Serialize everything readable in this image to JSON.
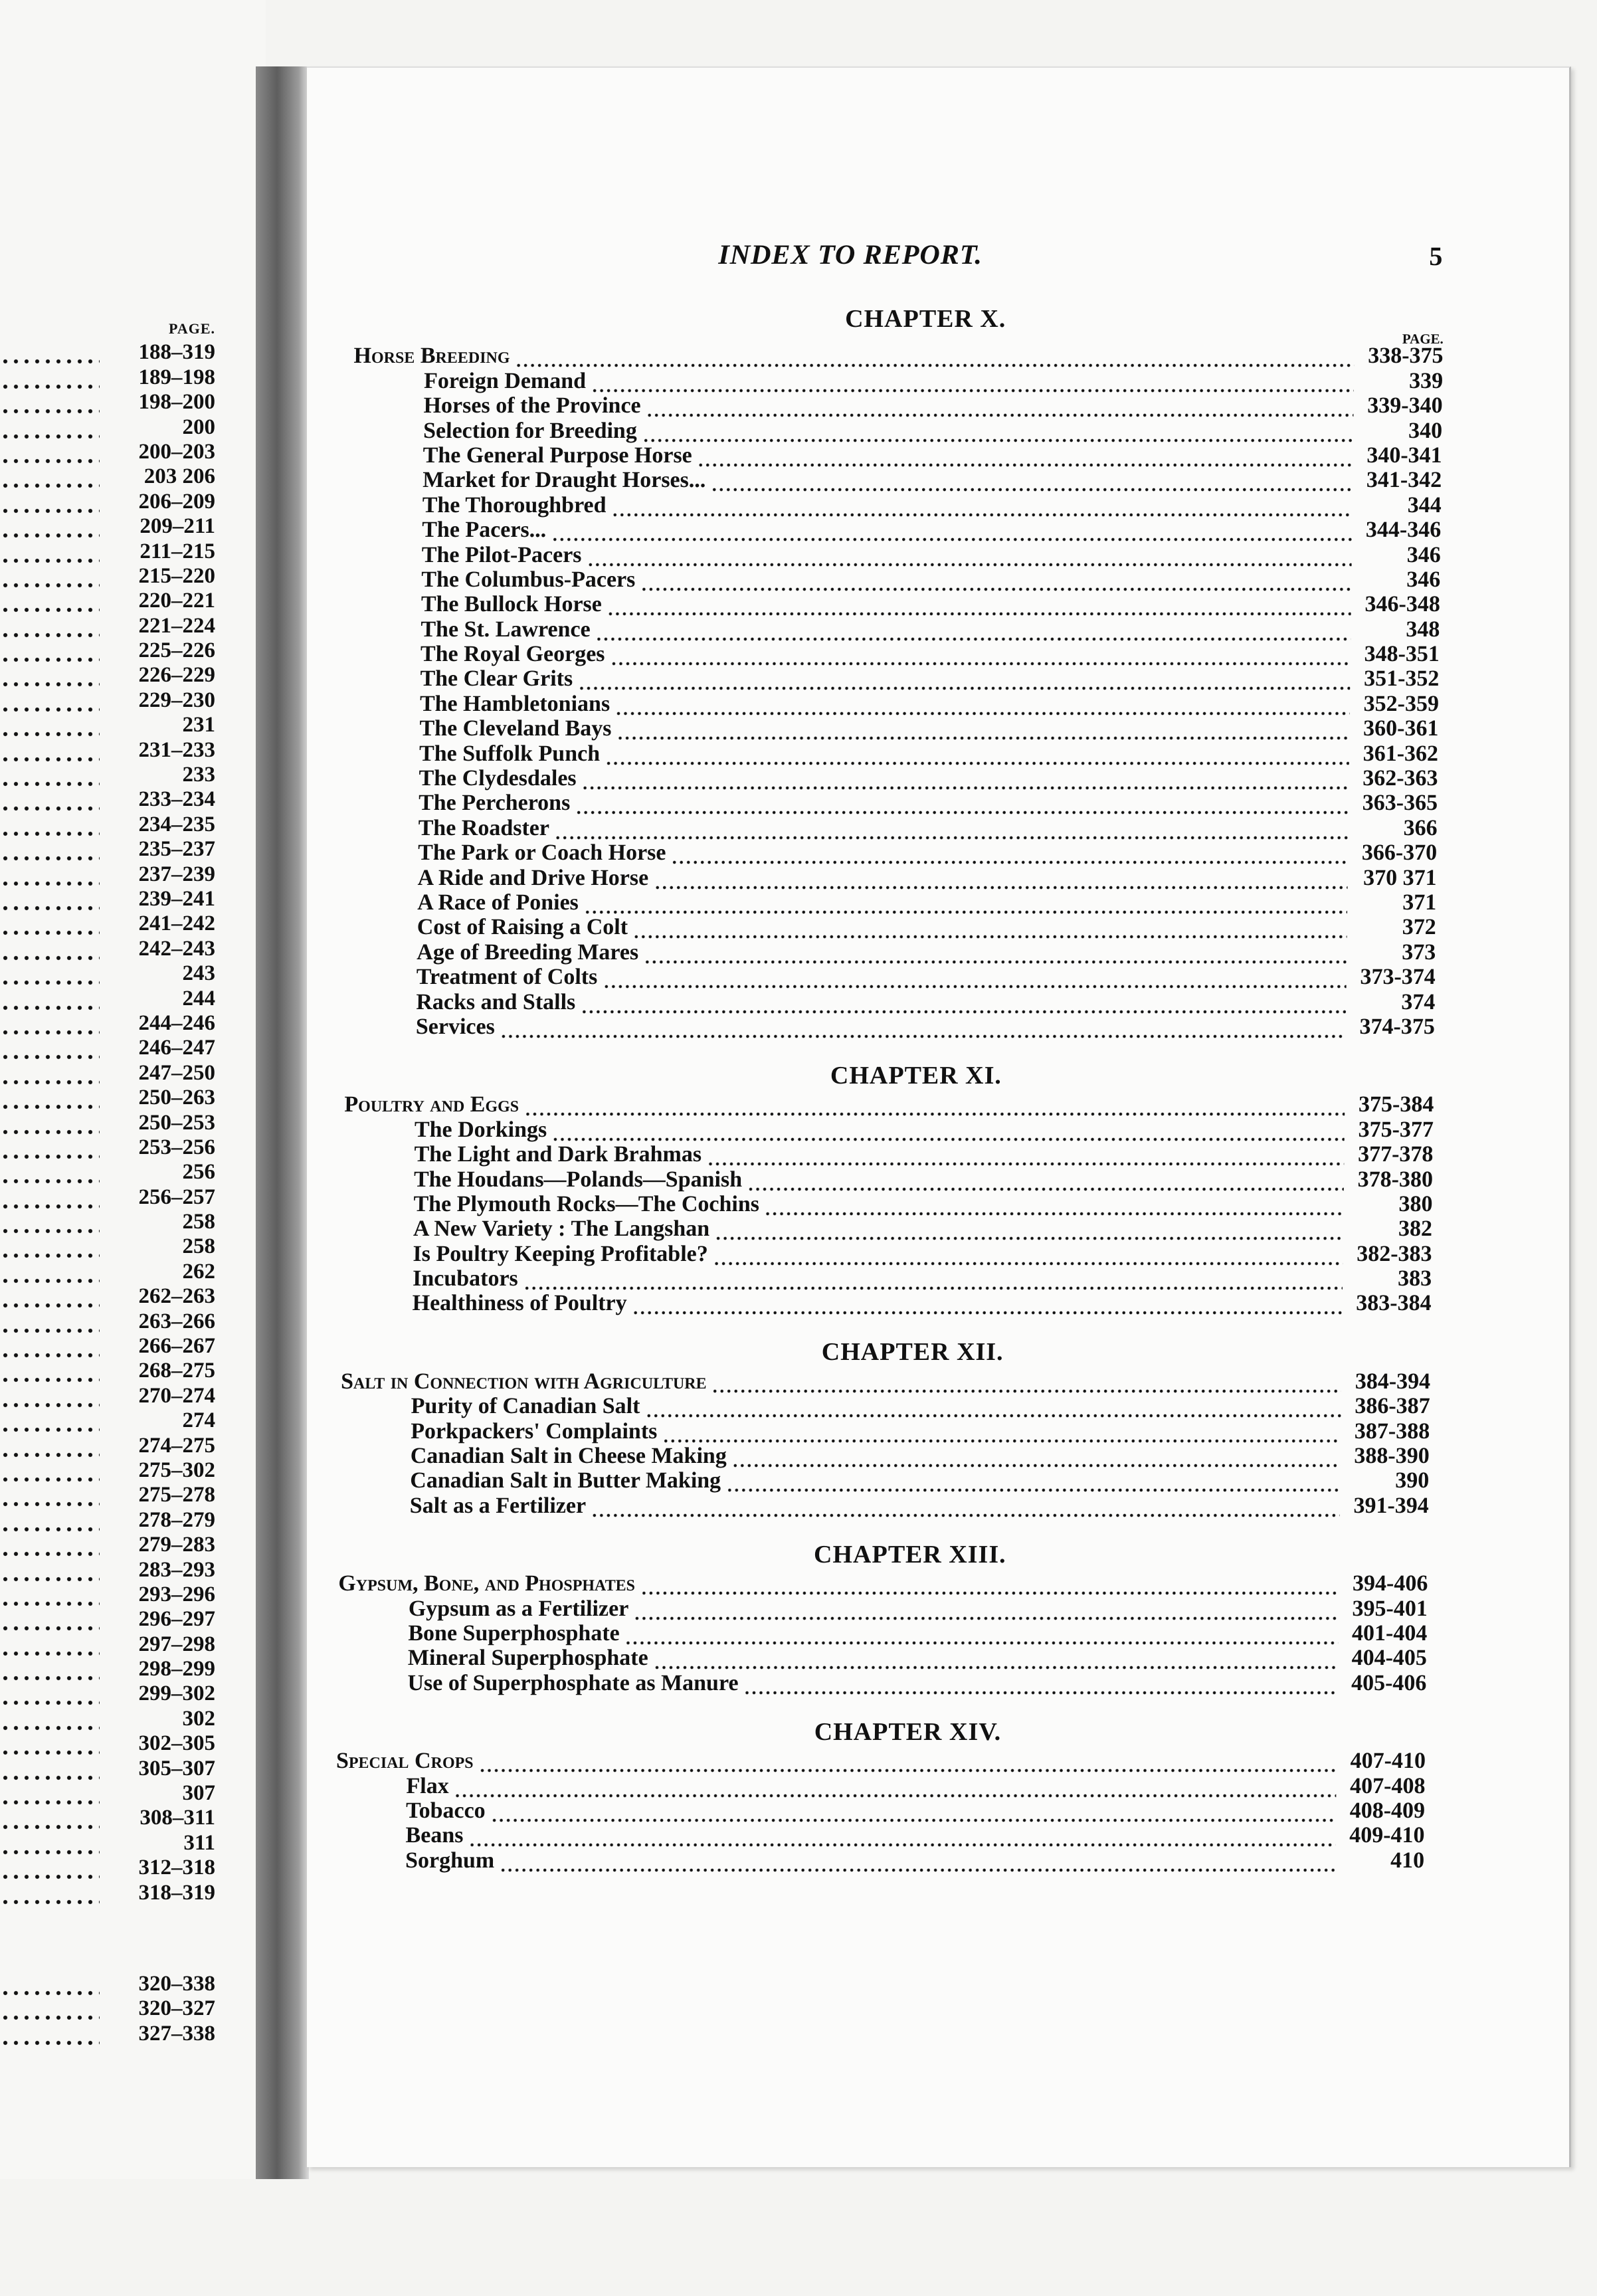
{
  "left_page": {
    "page_header": "PAGE.",
    "pages_group1": [
      "188–319",
      "189–198",
      "198–200",
      "200",
      "200–203",
      "203 206",
      "206–209",
      "209–211",
      "211–215",
      "215–220",
      "220–221",
      "221–224",
      "225–226",
      "226–229",
      "229–230",
      "231",
      "231–233",
      "233",
      "233–234",
      "234–235",
      "235–237",
      "237–239",
      "239–241",
      "241–242",
      "242–243",
      "243",
      "244",
      "244–246",
      "246–247",
      "247–250",
      "250–263",
      "250–253",
      "253–256",
      "256",
      "256–257",
      "258",
      "258",
      "262",
      "262–263",
      "263–266",
      "266–267",
      "268–275",
      "270–274",
      "274",
      "274–275",
      "275–302",
      "275–278",
      "278–279",
      "279–283",
      "283–293",
      "293–296",
      "296–297",
      "297–298",
      "298–299",
      "299–302",
      "302",
      "302–305",
      "305–307",
      "307",
      "308–311",
      "311",
      "312–318",
      "318–319"
    ],
    "pages_group2": [
      "320–338",
      "320–327",
      "327–338"
    ]
  },
  "right_page": {
    "title": "INDEX TO REPORT.",
    "page_number": "5",
    "page_header": "PAGE.",
    "sections": [
      {
        "chapter": "CHAPTER X.",
        "entries": [
          {
            "label": "Horse Breeding",
            "pages": "338-375",
            "main": true
          },
          {
            "label": "Foreign Demand",
            "pages": "339"
          },
          {
            "label": "Horses of the Province",
            "pages": "339-340"
          },
          {
            "label": "Selection for Breeding",
            "pages": "340"
          },
          {
            "label": "The General Purpose Horse",
            "pages": "340-341"
          },
          {
            "label": "Market for Draught Horses...",
            "pages": "341-342"
          },
          {
            "label": "The Thoroughbred",
            "pages": "344"
          },
          {
            "label": "The Pacers...",
            "pages": "344-346"
          },
          {
            "label": "The Pilot-Pacers",
            "pages": "346"
          },
          {
            "label": "The Columbus-Pacers",
            "pages": "346"
          },
          {
            "label": "The Bullock Horse",
            "pages": "346-348"
          },
          {
            "label": "The St. Lawrence",
            "pages": "348"
          },
          {
            "label": "The Royal Georges",
            "pages": "348-351"
          },
          {
            "label": "The Clear Grits",
            "pages": "351-352"
          },
          {
            "label": "The Hambletonians",
            "pages": "352-359"
          },
          {
            "label": "The Cleveland Bays",
            "pages": "360-361"
          },
          {
            "label": "The Suffolk Punch",
            "pages": "361-362"
          },
          {
            "label": "The Clydesdales",
            "pages": "362-363"
          },
          {
            "label": "The Percherons",
            "pages": "363-365"
          },
          {
            "label": "The Roadster",
            "pages": "366"
          },
          {
            "label": "The Park or Coach Horse",
            "pages": "366-370"
          },
          {
            "label": "A Ride and Drive Horse",
            "pages": "370 371"
          },
          {
            "label": "A Race of Ponies",
            "pages": "371"
          },
          {
            "label": "Cost of Raising a Colt",
            "pages": "372"
          },
          {
            "label": "Age of Breeding Mares",
            "pages": "373"
          },
          {
            "label": "Treatment of Colts",
            "pages": "373-374"
          },
          {
            "label": "Racks and Stalls",
            "pages": "374"
          },
          {
            "label": "Services",
            "pages": "374-375"
          }
        ]
      },
      {
        "chapter": "CHAPTER XI.",
        "entries": [
          {
            "label": "Poultry and Eggs",
            "pages": "375-384",
            "main": true
          },
          {
            "label": "The Dorkings",
            "pages": "375-377"
          },
          {
            "label": "The Light and Dark Brahmas",
            "pages": "377-378"
          },
          {
            "label": "The Houdans—Polands—Spanish",
            "pages": "378-380"
          },
          {
            "label": "The Plymouth Rocks—The Cochins",
            "pages": "380"
          },
          {
            "label": "A New Variety : The Langshan",
            "pages": "382"
          },
          {
            "label": "Is Poultry Keeping Profitable?",
            "pages": "382-383"
          },
          {
            "label": "Incubators",
            "pages": "383"
          },
          {
            "label": "Healthiness of Poultry",
            "pages": "383-384"
          }
        ]
      },
      {
        "chapter": "CHAPTER XII.",
        "entries": [
          {
            "label": "Salt in Connection with Agriculture",
            "pages": "384-394",
            "main": true
          },
          {
            "label": "Purity of Canadian Salt",
            "pages": "386-387"
          },
          {
            "label": "Porkpackers' Complaints",
            "pages": "387-388"
          },
          {
            "label": "Canadian Salt in Cheese Making",
            "pages": "388-390"
          },
          {
            "label": "Canadian Salt in Butter Making",
            "pages": "390"
          },
          {
            "label": "Salt as a Fertilizer",
            "pages": "391-394"
          }
        ]
      },
      {
        "chapter": "CHAPTER XIII.",
        "entries": [
          {
            "label": "Gypsum, Bone, and Phosphates",
            "pages": "394-406",
            "main": true
          },
          {
            "label": "Gypsum as a Fertilizer",
            "pages": "395-401"
          },
          {
            "label": "Bone Superphosphate",
            "pages": "401-404"
          },
          {
            "label": "Mineral Superphosphate",
            "pages": "404-405"
          },
          {
            "label": "Use of Superphosphate as Manure",
            "pages": "405-406"
          }
        ]
      },
      {
        "chapter": "CHAPTER XIV.",
        "entries": [
          {
            "label": "Special Crops",
            "pages": "407-410",
            "main": true
          },
          {
            "label": "Flax",
            "pages": "407-408"
          },
          {
            "label": "Tobacco",
            "pages": "408-409"
          },
          {
            "label": "Beans",
            "pages": "409-410"
          },
          {
            "label": "Sorghum",
            "pages": "410"
          }
        ]
      }
    ]
  }
}
